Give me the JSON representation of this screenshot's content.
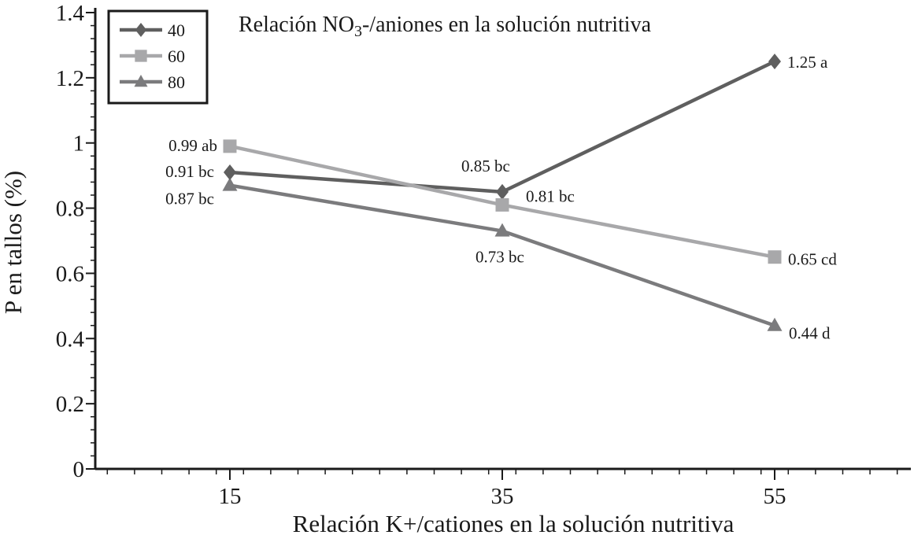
{
  "chart_data": {
    "type": "line",
    "title": "Relación NO3-/aniones en la solución nutritiva",
    "xlabel": "Relación K+/cationes en la solución nutritiva",
    "ylabel": "P en tallos (%)",
    "x": [
      15,
      35,
      55
    ],
    "x_tick_labels": [
      "15",
      "35",
      "55"
    ],
    "y_ticks": [
      0,
      0.2,
      0.4,
      0.6,
      0.8,
      1,
      1.2,
      1.4
    ],
    "y_tick_labels": [
      "0",
      "0.2",
      "0.4",
      "0.6",
      "0.8",
      "1",
      "1.2",
      "1.4"
    ],
    "ylim": [
      0,
      1.4
    ],
    "grid": false,
    "legend_position": "top-left",
    "series": [
      {
        "name": "40",
        "values": [
          0.91,
          0.85,
          1.25
        ],
        "labels": [
          "0.91 bc",
          "0.85 bc",
          "1.25 a"
        ],
        "color": "#5f5f5f",
        "marker": "diamond"
      },
      {
        "name": "60",
        "values": [
          0.99,
          0.81,
          0.65
        ],
        "labels": [
          "0.99 ab",
          "0.81 bc",
          "0.65 cd"
        ],
        "color": "#a8a8aa",
        "marker": "square"
      },
      {
        "name": "80",
        "values": [
          0.87,
          0.73,
          0.44
        ],
        "labels": [
          "0.87 bc",
          "0.73 bc",
          "0.44 d"
        ],
        "color": "#7b7b7d",
        "marker": "triangle"
      }
    ]
  }
}
